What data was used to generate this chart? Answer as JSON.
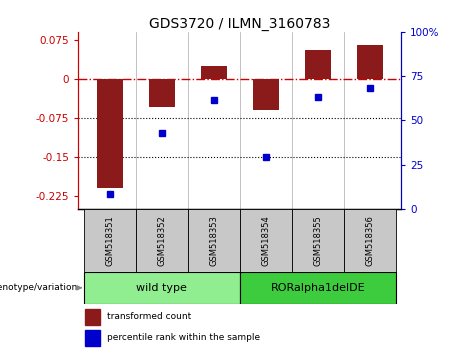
{
  "title": "GDS3720 / ILMN_3160783",
  "categories": [
    "GSM518351",
    "GSM518352",
    "GSM518353",
    "GSM518354",
    "GSM518355",
    "GSM518356"
  ],
  "red_bars": [
    -0.21,
    -0.055,
    0.025,
    -0.06,
    0.055,
    0.065
  ],
  "blue_dots": [
    -0.222,
    -0.105,
    -0.04,
    -0.15,
    -0.035,
    -0.018
  ],
  "ylim": [
    -0.25,
    0.09
  ],
  "yticks_left": [
    -0.225,
    -0.15,
    -0.075,
    0,
    0.075
  ],
  "yticks_right": [
    0,
    25,
    50,
    75,
    100
  ],
  "hline_y": 0.0,
  "dotted_lines": [
    -0.075,
    -0.15
  ],
  "group1_label": "wild type",
  "group2_label": "RORalpha1delDE",
  "group1_color": "#90EE90",
  "group2_color": "#3DCC3D",
  "sample_box_color": "#C8C8C8",
  "legend_label_red": "transformed count",
  "legend_label_blue": "percentile rank within the sample",
  "left_axis_color": "#CC0000",
  "right_axis_color": "#0000CC",
  "bar_color": "#8B1A1A",
  "dot_color": "#0000CC",
  "background_color": "#ffffff",
  "title_fontsize": 10,
  "tick_fontsize": 7.5,
  "label_fontsize": 7,
  "bar_width": 0.5
}
